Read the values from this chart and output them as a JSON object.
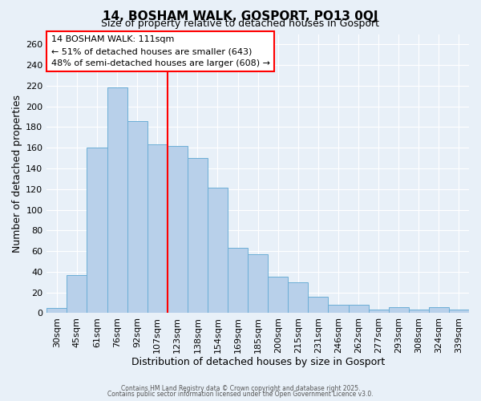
{
  "title": "14, BOSHAM WALK, GOSPORT, PO13 0QJ",
  "subtitle": "Size of property relative to detached houses in Gosport",
  "xlabel": "Distribution of detached houses by size in Gosport",
  "ylabel": "Number of detached properties",
  "categories": [
    "30sqm",
    "45sqm",
    "61sqm",
    "76sqm",
    "92sqm",
    "107sqm",
    "123sqm",
    "138sqm",
    "154sqm",
    "169sqm",
    "185sqm",
    "200sqm",
    "215sqm",
    "231sqm",
    "246sqm",
    "262sqm",
    "277sqm",
    "293sqm",
    "308sqm",
    "324sqm",
    "339sqm"
  ],
  "values": [
    5,
    37,
    160,
    218,
    186,
    163,
    162,
    150,
    121,
    63,
    57,
    35,
    30,
    16,
    8,
    8,
    3,
    6,
    3,
    6,
    3
  ],
  "bar_color": "#b8d0ea",
  "bar_edge_color": "#6baed6",
  "vline_color": "red",
  "vline_index": 5.5,
  "ylim": [
    0,
    270
  ],
  "yticks": [
    0,
    20,
    40,
    60,
    80,
    100,
    120,
    140,
    160,
    180,
    200,
    220,
    240,
    260
  ],
  "annotation_title": "14 BOSHAM WALK: 111sqm",
  "annotation_line1": "← 51% of detached houses are smaller (643)",
  "annotation_line2": "48% of semi-detached houses are larger (608) →",
  "annotation_box_color": "white",
  "annotation_box_edge_color": "red",
  "footer1": "Contains HM Land Registry data © Crown copyright and database right 2025.",
  "footer2": "Contains public sector information licensed under the Open Government Licence v3.0.",
  "background_color": "#e8f0f8",
  "plot_background_color": "#e8f0f8",
  "grid_color": "white",
  "title_fontsize": 11,
  "subtitle_fontsize": 9,
  "tick_fontsize": 8,
  "label_fontsize": 9,
  "annotation_fontsize": 8
}
